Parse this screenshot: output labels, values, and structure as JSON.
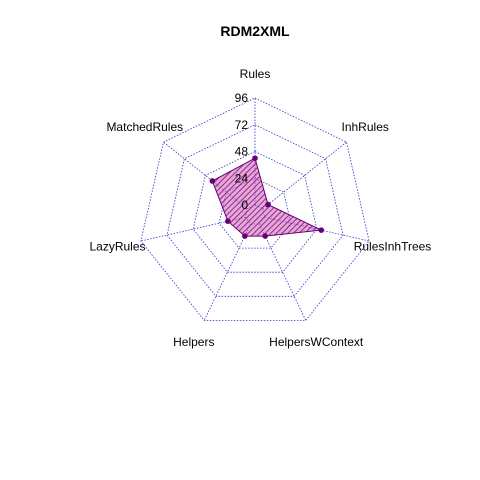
{
  "chart_data": {
    "type": "radar",
    "title": "RDM2XML",
    "axes": [
      "Rules",
      "InhRules",
      "RulesInhTrees",
      "HelpersWContext",
      "Helpers",
      "LazyRules",
      "MatchedRules"
    ],
    "ticks": [
      0,
      24,
      48,
      72,
      96
    ],
    "range": [
      0,
      96
    ],
    "grid": true,
    "series": [
      {
        "values": [
          42,
          6,
          52,
          12,
          12,
          16,
          40
        ],
        "color": "#660077",
        "fill": "#cc66aa"
      }
    ],
    "grid_color": "#3333cc"
  }
}
